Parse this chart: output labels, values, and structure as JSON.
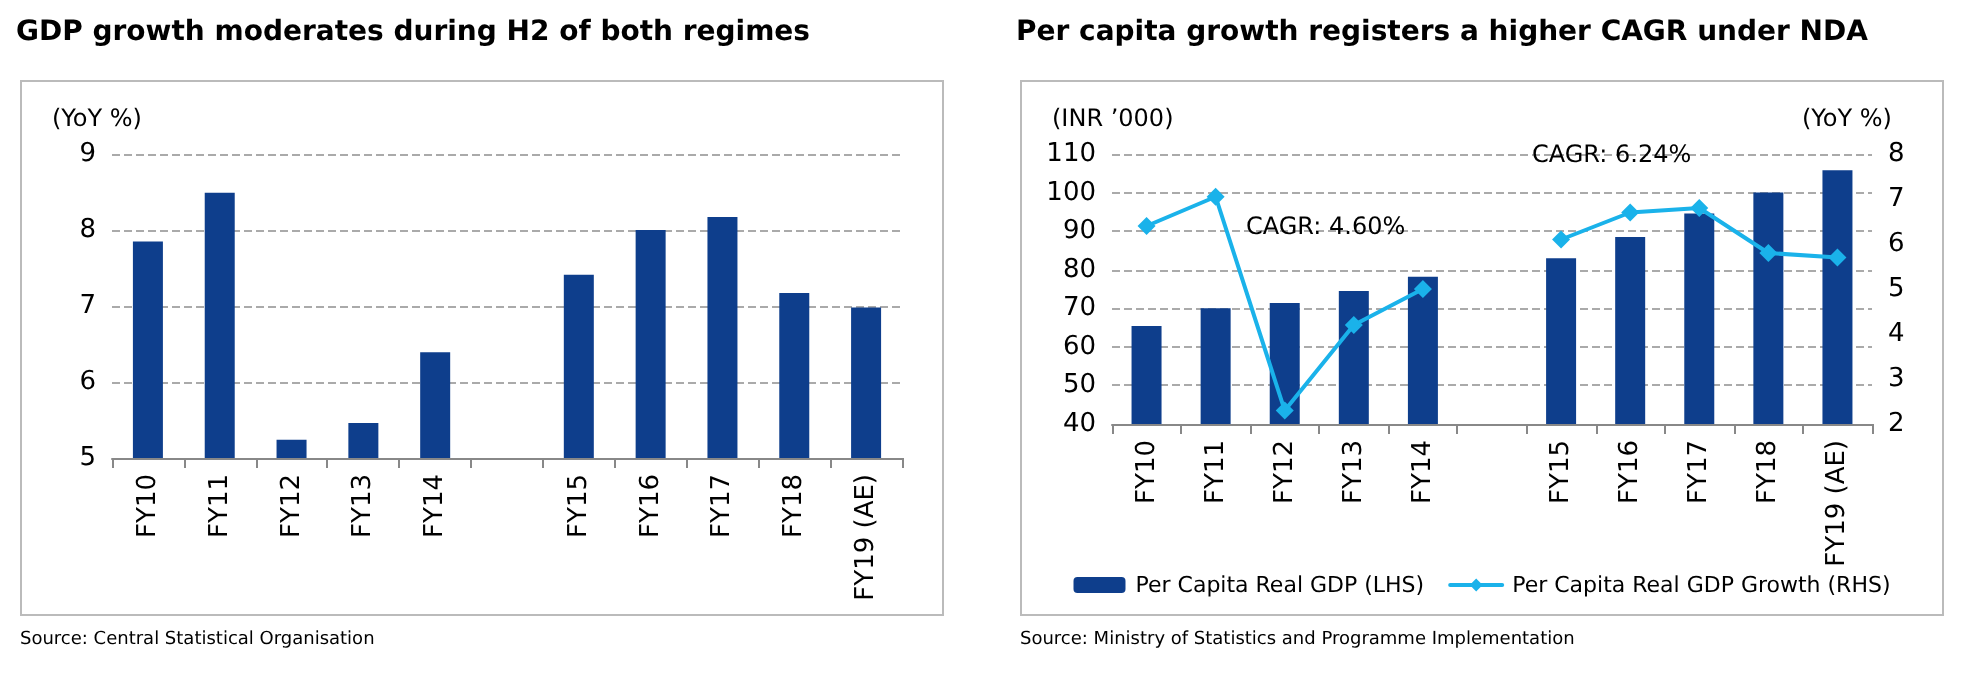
{
  "chart_data": [
    {
      "type": "bar",
      "title": "GDP growth moderates during H2 of both regimes",
      "ylabel": "(YoY %)",
      "categories": [
        "FY10",
        "FY11",
        "FY12",
        "FY13",
        "FY14",
        null,
        "FY15",
        "FY16",
        "FY17",
        "FY18",
        "FY19 (AE)"
      ],
      "values": [
        7.85,
        8.49,
        5.24,
        5.46,
        6.39,
        null,
        7.41,
        8.0,
        8.17,
        7.17,
        6.98
      ],
      "color": "#0e3e8c",
      "ylim": [
        5,
        9
      ],
      "yticks": [
        5,
        6,
        7,
        8,
        9
      ],
      "grid": "y",
      "legend": false,
      "annotations": [
        "Source: Central Statistical Organisation"
      ]
    },
    {
      "type": "bar",
      "title": "Per capita growth registers a higher CAGR under NDA",
      "ylabel": "(INR ’000)",
      "y2label": "(YoY %)",
      "categories": [
        "FY10",
        "FY11",
        "FY12",
        "FY13",
        "FY14",
        null,
        "FY15",
        "FY16",
        "FY17",
        "FY18",
        "FY19 (AE)"
      ],
      "series": [
        {
          "name": "Per Capita Real GDP (LHS)",
          "type": "bar",
          "color": "#0e3e8c",
          "values": [
            65.4,
            70,
            71.4,
            74.5,
            78.2,
            null,
            83,
            88.5,
            94.6,
            100,
            105.8
          ]
        },
        {
          "name": "Per Capita Real GDP Growth (RHS)",
          "type": "line",
          "axis": "y2",
          "color": "#1ab2ea",
          "values": [
            6.4,
            7.05,
            2.3,
            4.2,
            5.0,
            null,
            6.1,
            6.7,
            6.8,
            5.8,
            5.7
          ]
        }
      ],
      "ylim": [
        40,
        110
      ],
      "yticks": [
        40,
        50,
        60,
        70,
        80,
        90,
        100,
        110
      ],
      "y2lim": [
        2,
        8
      ],
      "y2ticks": [
        2,
        3,
        4,
        5,
        6,
        7,
        8
      ],
      "grid": "y",
      "legend": "bottom",
      "marker": "diamond",
      "line_style": "solid",
      "annotations": [
        "CAGR: 4.60%",
        "CAGR: 6.24%",
        "Source: Ministry of Statistics and Programme Implementation"
      ]
    }
  ]
}
